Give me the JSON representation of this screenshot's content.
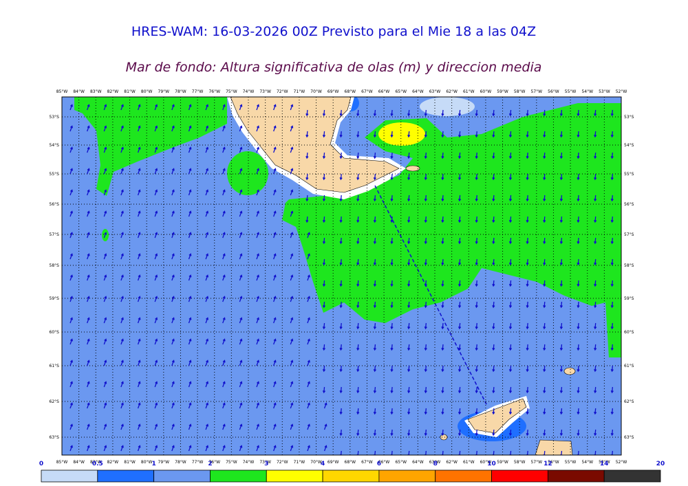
{
  "header": {
    "title": "HRES-WAM: 16-03-2026 00Z Previsto para el Mie 18 a las 04Z",
    "subtitle": "Mar de fondo: Altura significativa de olas (m) y direccion media"
  },
  "map": {
    "longitudes": [
      "85°W",
      "84°W",
      "83°W",
      "82°W",
      "81°W",
      "80°W",
      "79°W",
      "78°W",
      "77°W",
      "76°W",
      "75°W",
      "74°W",
      "73°W",
      "72°W",
      "71°W",
      "70°W",
      "69°W",
      "68°W",
      "67°W",
      "66°W",
      "65°W",
      "64°W",
      "63°W",
      "62°W",
      "61°W",
      "60°W",
      "59°W",
      "58°W",
      "57°W",
      "56°W",
      "55°W",
      "54°W",
      "53°W",
      "52°W"
    ],
    "latitudes": [
      "53°S",
      "54°S",
      "55°S",
      "56°S",
      "57°S",
      "58°S",
      "59°S",
      "60°S",
      "61°S",
      "62°S",
      "63°S"
    ]
  },
  "colorbar": {
    "ticks": [
      0,
      0.5,
      1,
      2,
      3,
      4,
      6,
      8,
      10,
      12,
      14,
      20
    ],
    "colors": [
      "#c6dbf7",
      "#1f6fff",
      "#6b98f0",
      "#1ee61e",
      "#ffff00",
      "#ffd700",
      "#ffa500",
      "#ff7300",
      "#ff0000",
      "#7a0a00",
      "#333333"
    ]
  }
}
